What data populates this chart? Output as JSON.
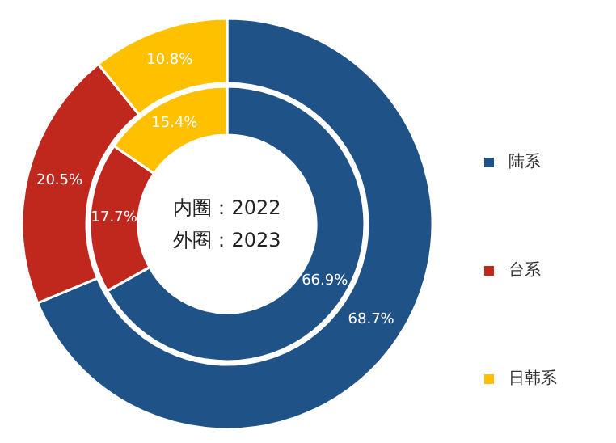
{
  "chart_data": {
    "type": "donut",
    "categories": [
      "陆系",
      "台系",
      "日韩系"
    ],
    "colors": [
      "#1f5286",
      "#c0281e",
      "#ffc000"
    ],
    "series": [
      {
        "values": [
          66.9,
          17.7,
          15.4
        ],
        "value_labels": [
          "66.9%",
          "17.7%",
          "15.4%"
        ]
      },
      {
        "values": [
          68.7,
          20.5,
          10.8
        ],
        "value_labels": [
          "68.7%",
          "20.5%",
          "10.8%"
        ]
      }
    ],
    "annotations": [
      "内圈：2022",
      "外圈：2023"
    ],
    "legend": "right"
  }
}
